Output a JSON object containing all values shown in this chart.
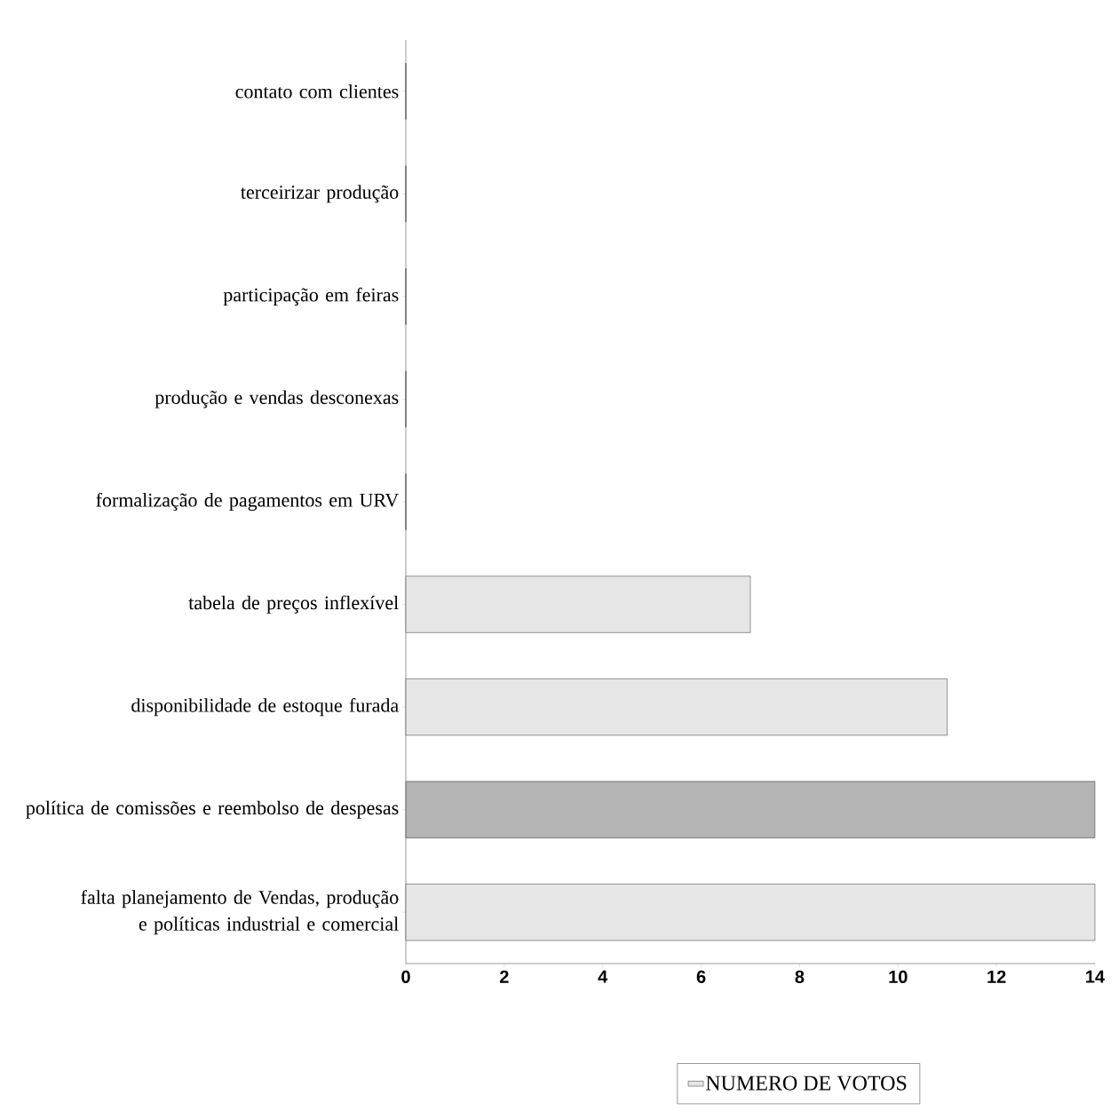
{
  "chart_data": {
    "type": "bar",
    "orientation": "horizontal",
    "categories": [
      "contato com clientes",
      "terceirizar produção",
      "participação em feiras",
      "produção e vendas desconexas",
      "formalização de pagamentos em URV",
      "tabela de preços inflexível",
      "disponibilidade de estoque furada",
      "política de comissões e reembolso de despesas",
      "falta planejamento de Vendas, produção e políticas industrial e comercial"
    ],
    "series": [
      {
        "name": "NUMERO DE VOTOS",
        "color": "#e6e6e6",
        "colors": [
          "#e6e6e6",
          "#e6e6e6",
          "#e6e6e6",
          "#e6e6e6",
          "#e6e6e6",
          "#e6e6e6",
          "#e6e6e6",
          "#b4b4b4",
          "#e6e6e6"
        ],
        "values": [
          0,
          0,
          0,
          0,
          0,
          7,
          11,
          14,
          14
        ]
      }
    ],
    "xlim": [
      0,
      14
    ],
    "xticks": [
      0,
      2,
      4,
      6,
      8,
      10,
      12,
      14
    ],
    "legend": "bottom"
  }
}
